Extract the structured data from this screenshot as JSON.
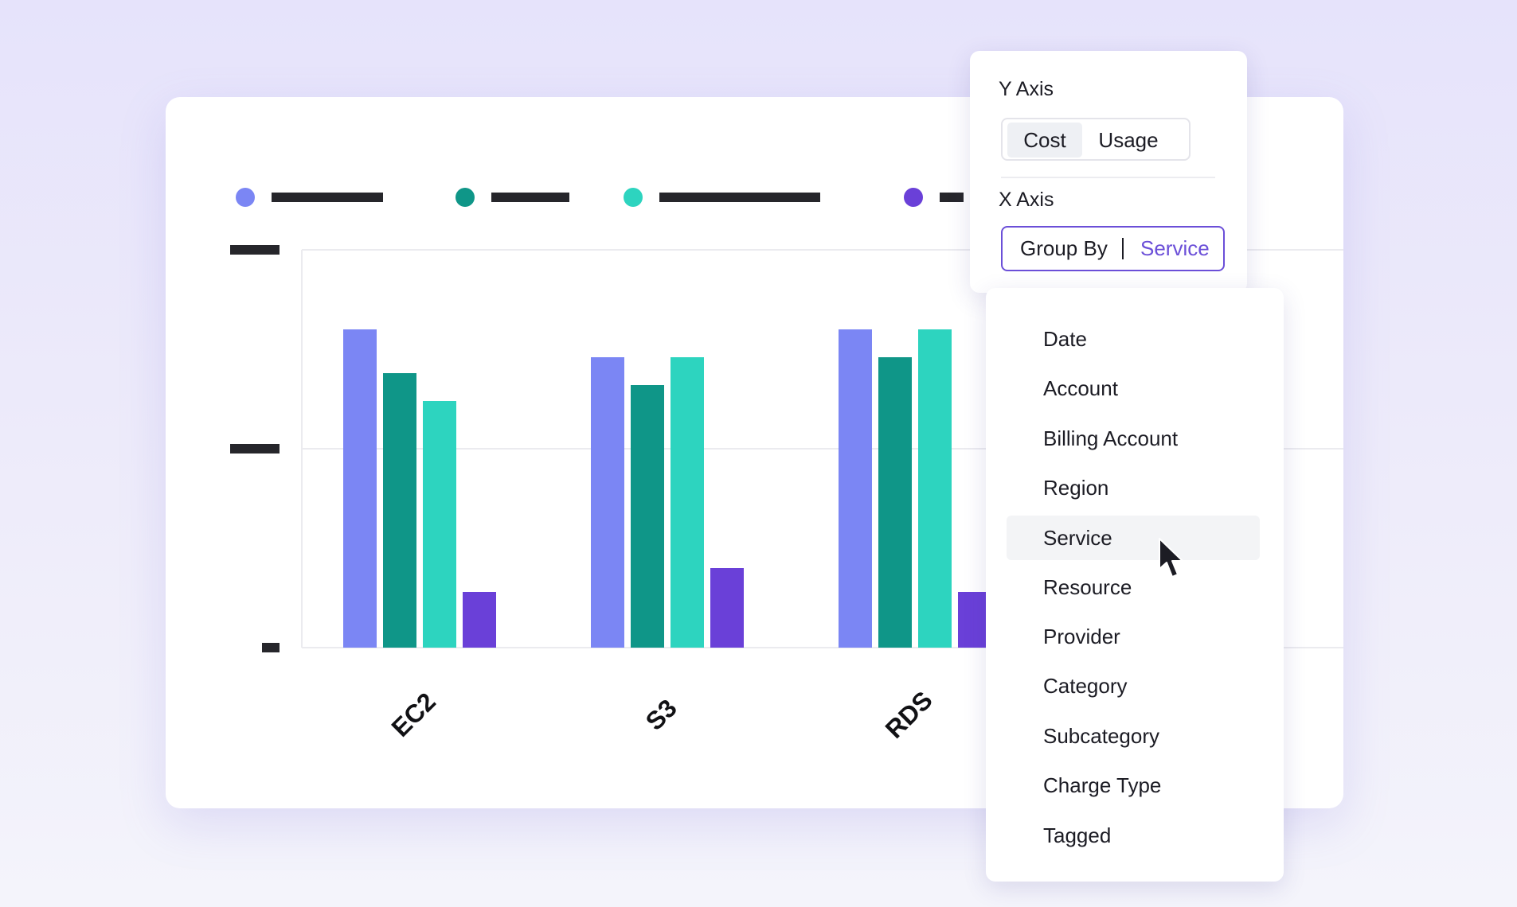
{
  "chart_data": {
    "type": "bar",
    "categories": [
      "EC2",
      "S3",
      "RDS"
    ],
    "series": [
      {
        "color": "#7b86f4",
        "values": [
          80,
          73,
          80
        ]
      },
      {
        "color": "#0f9688",
        "values": [
          69,
          66,
          73
        ]
      },
      {
        "color": "#2dd4bf",
        "values": [
          62,
          73,
          80
        ]
      },
      {
        "color": "#6a40d8",
        "values": [
          14,
          20,
          14
        ]
      }
    ],
    "ylim": [
      0,
      100
    ],
    "grid": true,
    "legend": "top-left"
  },
  "panel": {
    "y_axis_label": "Y Axis",
    "y_axis_options": [
      "Cost",
      "Usage"
    ],
    "y_axis_selected": "Cost",
    "x_axis_label": "X Axis",
    "group_by_label": "Group By",
    "group_by_value": "Service"
  },
  "dropdown": {
    "items": [
      "Date",
      "Account",
      "Billing Account",
      "Region",
      "Service",
      "Resource",
      "Provider",
      "Category",
      "Subcategory",
      "Charge Type",
      "Tagged"
    ],
    "hovered": "Service"
  },
  "icons": {
    "cursor": "arrow-cursor-icon"
  }
}
